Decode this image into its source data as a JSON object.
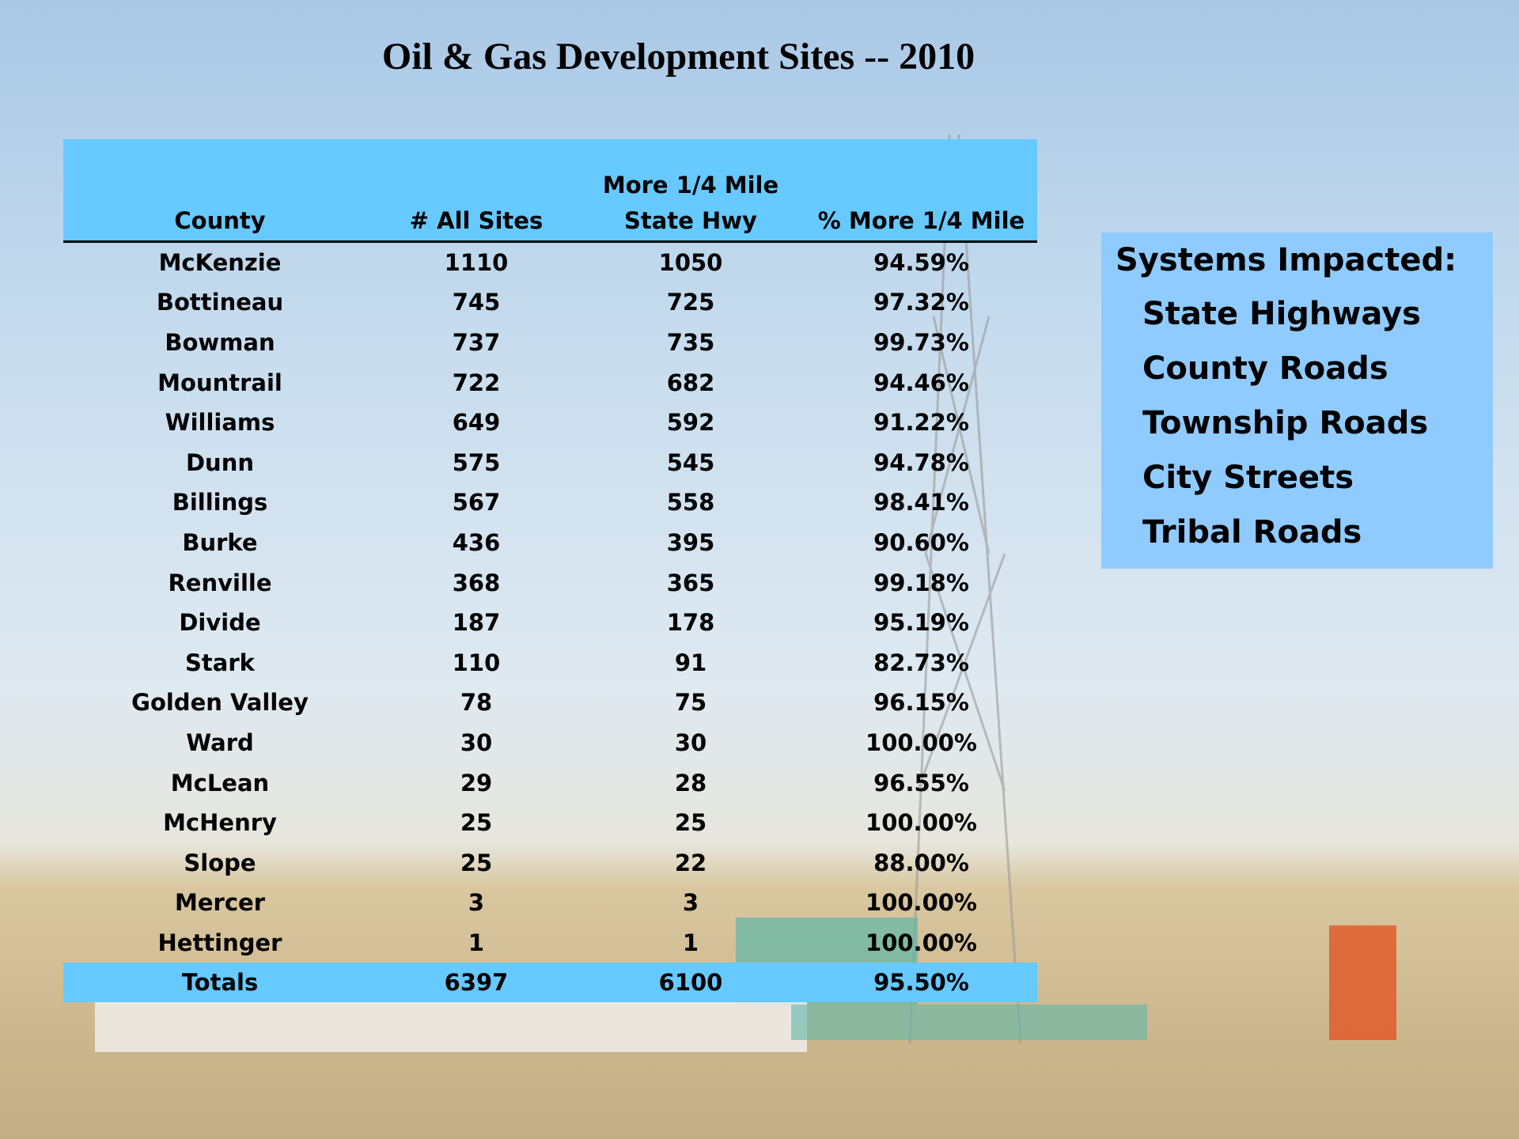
{
  "title": "Oil & Gas Development Sites -- 2010",
  "table": {
    "header": [
      [
        "County"
      ],
      [
        "# All Sites"
      ],
      [
        "More 1/4 Mile",
        "State Hwy"
      ],
      [
        "% More 1/4 Mile"
      ]
    ],
    "rows": [
      [
        "McKenzie",
        "1110",
        "1050",
        "94.59%"
      ],
      [
        "Bottineau",
        "745",
        "725",
        "97.32%"
      ],
      [
        "Bowman",
        "737",
        "735",
        "99.73%"
      ],
      [
        "Mountrail",
        "722",
        "682",
        "94.46%"
      ],
      [
        "Williams",
        "649",
        "592",
        "91.22%"
      ],
      [
        "Dunn",
        "575",
        "545",
        "94.78%"
      ],
      [
        "Billings",
        "567",
        "558",
        "98.41%"
      ],
      [
        "Burke",
        "436",
        "395",
        "90.60%"
      ],
      [
        "Renville",
        "368",
        "365",
        "99.18%"
      ],
      [
        "Divide",
        "187",
        "178",
        "95.19%"
      ],
      [
        "Stark",
        "110",
        "91",
        "82.73%"
      ],
      [
        "Golden Valley",
        "78",
        "75",
        "96.15%"
      ],
      [
        "Ward",
        "30",
        "30",
        "100.00%"
      ],
      [
        "McLean",
        "29",
        "28",
        "96.55%"
      ],
      [
        "McHenry",
        "25",
        "25",
        "100.00%"
      ],
      [
        "Slope",
        "25",
        "22",
        "88.00%"
      ],
      [
        "Mercer",
        "3",
        "3",
        "100.00%"
      ],
      [
        "Hettinger",
        "1",
        "1",
        "100.00%"
      ]
    ],
    "totals": [
      "Totals",
      "6397",
      "6100",
      "95.50%"
    ]
  },
  "side_box": {
    "title": "Systems Impacted:",
    "items": [
      "State Highways",
      "County Roads",
      "Township Roads",
      "City Streets",
      "Tribal Roads"
    ]
  }
}
